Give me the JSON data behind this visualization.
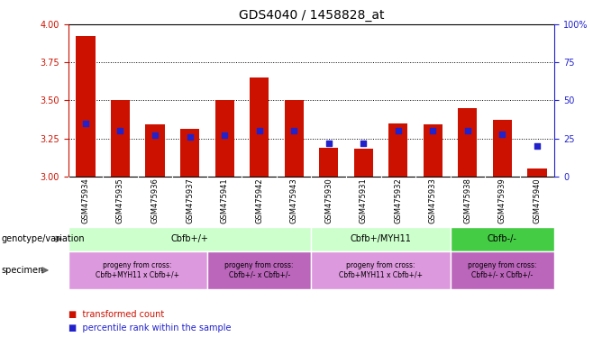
{
  "title": "GDS4040 / 1458828_at",
  "samples": [
    "GSM475934",
    "GSM475935",
    "GSM475936",
    "GSM475937",
    "GSM475941",
    "GSM475942",
    "GSM475943",
    "GSM475930",
    "GSM475931",
    "GSM475932",
    "GSM475933",
    "GSM475938",
    "GSM475939",
    "GSM475940"
  ],
  "transformed_count": [
    3.92,
    3.5,
    3.34,
    3.31,
    3.5,
    3.65,
    3.5,
    3.19,
    3.18,
    3.35,
    3.34,
    3.45,
    3.37,
    3.05
  ],
  "percentile_rank": [
    35,
    30,
    27,
    26,
    27,
    30,
    30,
    22,
    22,
    30,
    30,
    30,
    28,
    20
  ],
  "bar_color": "#cc1100",
  "marker_color": "#2222cc",
  "ylim_left": [
    3.0,
    4.0
  ],
  "ylim_right": [
    0,
    100
  ],
  "yticks_left": [
    3.0,
    3.25,
    3.5,
    3.75,
    4.0
  ],
  "yticks_right": [
    0,
    25,
    50,
    75,
    100
  ],
  "yticklabels_right": [
    "0",
    "25",
    "50",
    "75",
    "100%"
  ],
  "grid_color": "black",
  "bg": "#ffffff",
  "bar_color_left_axis": "#cc1100",
  "right_axis_color": "#2222cc",
  "genotype_groups": [
    {
      "label": "Cbfb+/+",
      "start": 0,
      "end": 7,
      "color": "#ccffcc"
    },
    {
      "label": "Cbfb+/MYH11",
      "start": 7,
      "end": 11,
      "color": "#ccffcc"
    },
    {
      "label": "Cbfb-/-",
      "start": 11,
      "end": 14,
      "color": "#44cc44"
    }
  ],
  "specimen_groups": [
    {
      "label": "progeny from cross:\nCbfb+MYH11 x Cbfb+/+",
      "start": 0,
      "end": 4,
      "color": "#dd99dd"
    },
    {
      "label": "progeny from cross:\nCbfb+/- x Cbfb+/-",
      "start": 4,
      "end": 7,
      "color": "#bb66bb"
    },
    {
      "label": "progeny from cross:\nCbfb+MYH11 x Cbfb+/+",
      "start": 7,
      "end": 11,
      "color": "#dd99dd"
    },
    {
      "label": "progeny from cross:\nCbfb+/- x Cbfb+/-",
      "start": 11,
      "end": 14,
      "color": "#bb66bb"
    }
  ],
  "legend_red": "transformed count",
  "legend_blue": "percentile rank within the sample",
  "label_genotype": "genotype/variation",
  "label_specimen": "specimen",
  "title_fontsize": 10,
  "tick_fontsize": 7,
  "sample_fontsize": 6,
  "annot_fontsize": 7,
  "specimen_fontsize": 5.5,
  "legend_fontsize": 7
}
